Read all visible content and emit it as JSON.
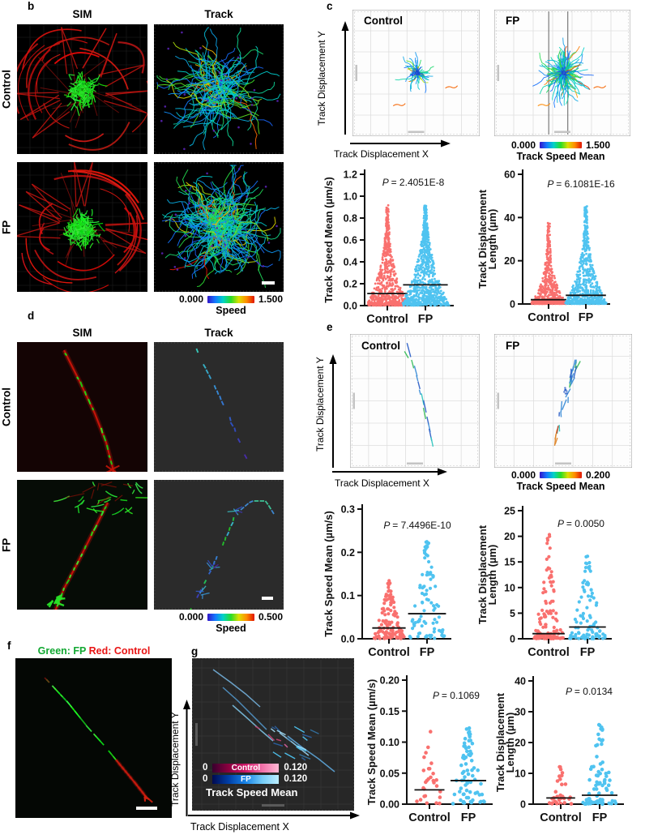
{
  "colors": {
    "control_points": "#F9706E",
    "fp_points": "#4FC3F0",
    "sim_green": "#2bd42b",
    "sim_red": "#d41a10",
    "axis_black": "#111111"
  },
  "panel_b": {
    "label": "b",
    "col_headers": [
      "SIM",
      "Track"
    ],
    "row_labels": [
      "Control",
      "FP"
    ],
    "colorbar": {
      "min": "0.000",
      "max": "1.500",
      "label": "Speed"
    }
  },
  "panel_c": {
    "label": "c",
    "plot_titles": [
      "Control",
      "FP"
    ],
    "y_axis": "Track Displacement Y",
    "x_axis": "Track Displacement X",
    "colorbar": {
      "min": "0.000",
      "max": "1.500",
      "label": "Track Speed Mean"
    }
  },
  "panel_d": {
    "label": "d",
    "col_headers": [
      "SIM",
      "Track"
    ],
    "row_labels": [
      "Control",
      "FP"
    ],
    "colorbar": {
      "min": "0.000",
      "max": "0.500",
      "label": "Speed"
    }
  },
  "panel_e": {
    "label": "e",
    "plot_titles": [
      "Control",
      "FP"
    ],
    "y_axis": "Track Displacement Y",
    "x_axis": "Track Displacement X",
    "colorbar": {
      "min": "0.000",
      "max": "0.200",
      "label": "Track Speed Mean"
    }
  },
  "panel_f": {
    "label": "f",
    "title_green": "Green: FP",
    "title_red": "Red: Control"
  },
  "panel_g": {
    "label": "g",
    "y_axis": "Track Displacement Y",
    "x_axis": "Track Displacement X",
    "colorbar_title": "Track Speed Mean",
    "colorbars": [
      {
        "min": "0",
        "label": "Control",
        "max": "0.120"
      },
      {
        "min": "0",
        "label": "FP",
        "max": "0.120"
      }
    ]
  },
  "chart_data": [
    {
      "id": "c1",
      "panel": "c",
      "type": "scatter",
      "ylabel_lines": [
        "Track Speed Mean (µm/s)"
      ],
      "p_symbol": "P",
      "p_value": "= 2.4051E-8",
      "categories": [
        "Control",
        "FP"
      ],
      "ylim": [
        0,
        1.2
      ],
      "yticks": [
        0,
        0.2,
        0.4,
        0.6,
        0.8,
        1.0,
        1.2
      ],
      "ytick_labels": [
        "0.0",
        "0.2",
        "0.4",
        "0.6",
        "0.8",
        "1.0",
        "1.2"
      ],
      "series": [
        {
          "name": "Control",
          "color": "#F9706E",
          "n": 750,
          "vmax": 0.91,
          "median": 0.11,
          "k": 3.0
        },
        {
          "name": "FP",
          "color": "#4FC3F0",
          "n": 900,
          "vmax": 0.91,
          "median": 0.19,
          "k": 2.26
        }
      ]
    },
    {
      "id": "c2",
      "panel": "c",
      "type": "scatter",
      "ylabel_lines": [
        "Track Displacement",
        "Length (µm)"
      ],
      "p_symbol": "P",
      "p_value": "= 6.1081E-16",
      "categories": [
        "Control",
        "FP"
      ],
      "ylim": [
        0,
        60
      ],
      "yticks": [
        0,
        20,
        40,
        60
      ],
      "ytick_labels": [
        "0",
        "20",
        "40",
        "60"
      ],
      "series": [
        {
          "name": "Control",
          "color": "#F9706E",
          "n": 700,
          "vmax": 37.5,
          "median": 2.0,
          "k": 4.23
        },
        {
          "name": "FP",
          "color": "#4FC3F0",
          "n": 850,
          "vmax": 45.0,
          "median": 4.0,
          "k": 3.49
        }
      ]
    },
    {
      "id": "e1",
      "panel": "e",
      "type": "scatter",
      "ylabel_lines": [
        "Track Speed Mean (µm/s)"
      ],
      "p_symbol": "P",
      "p_value": "= 7.4496E-10",
      "categories": [
        "Control",
        "FP"
      ],
      "ylim": [
        0,
        0.3
      ],
      "yticks": [
        0,
        0.1,
        0.2,
        0.3
      ],
      "ytick_labels": [
        "0.0",
        "0.1",
        "0.2",
        "0.3"
      ],
      "series": [
        {
          "name": "Control",
          "color": "#F9706E",
          "n": 120,
          "vmax": 0.135,
          "median": 0.025,
          "k": 2.43
        },
        {
          "name": "FP",
          "color": "#4FC3F0",
          "n": 95,
          "vmax": 0.23,
          "median": 0.058,
          "k": 1.99
        }
      ]
    },
    {
      "id": "e2",
      "panel": "e",
      "type": "scatter",
      "ylabel_lines": [
        "Track Displacement",
        "Length (µm)"
      ],
      "p_symbol": "P",
      "p_value": "= 0.0050",
      "categories": [
        "Control",
        "FP"
      ],
      "ylim": [
        0,
        25
      ],
      "yticks": [
        0,
        5,
        10,
        15,
        20,
        25
      ],
      "ytick_labels": [
        "0",
        "5",
        "10",
        "15",
        "20",
        "25"
      ],
      "series": [
        {
          "name": "Control",
          "color": "#F9706E",
          "n": 130,
          "vmax": 21.0,
          "median": 1.0,
          "k": 4.39
        },
        {
          "name": "FP",
          "color": "#4FC3F0",
          "n": 100,
          "vmax": 16.0,
          "median": 2.3,
          "k": 2.8
        }
      ]
    },
    {
      "id": "g1",
      "panel": "g",
      "type": "scatter",
      "ylabel_lines": [
        "Track Speed Mean (µm/s)"
      ],
      "p_symbol": "P",
      "p_value": "= 0.1069",
      "categories": [
        "Control",
        "FP"
      ],
      "ylim": [
        0,
        0.2
      ],
      "yticks": [
        0,
        0.05,
        0.1,
        0.15,
        0.2
      ],
      "ytick_labels": [
        "0.00",
        "0.05",
        "0.10",
        "0.15",
        "0.20"
      ],
      "series": [
        {
          "name": "Control",
          "color": "#F9706E",
          "n": 28,
          "vmax": 0.12,
          "median": 0.023,
          "k": 2.38
        },
        {
          "name": "FP",
          "color": "#4FC3F0",
          "n": 72,
          "vmax": 0.125,
          "median": 0.038,
          "k": 1.72
        }
      ]
    },
    {
      "id": "g2",
      "panel": "g",
      "type": "scatter",
      "ylabel_lines": [
        "Track Displacement",
        "Length (µm)"
      ],
      "p_symbol": "P",
      "p_value": "= 0.0134",
      "categories": [
        "Control",
        "FP"
      ],
      "ylim": [
        0,
        40
      ],
      "yticks": [
        0,
        10,
        20,
        30,
        40
      ],
      "ytick_labels": [
        "0",
        "10",
        "20",
        "30",
        "40"
      ],
      "series": [
        {
          "name": "Control",
          "color": "#F9706E",
          "n": 32,
          "vmax": 12.5,
          "median": 2.0,
          "k": 2.64
        },
        {
          "name": "FP",
          "color": "#4FC3F0",
          "n": 88,
          "vmax": 31.0,
          "median": 2.9,
          "k": 3.42
        }
      ]
    }
  ],
  "micro": [
    {
      "id": "b-sim-control",
      "kind": "sim-cell",
      "seed": 11,
      "dense": 150
    },
    {
      "id": "b-track-control",
      "kind": "track-net",
      "seed": 21,
      "n": 120,
      "spread": 36,
      "scalebar": false
    },
    {
      "id": "b-sim-fp",
      "kind": "sim-cell",
      "seed": 31,
      "dense": 235
    },
    {
      "id": "b-track-fp",
      "kind": "track-net",
      "seed": 41,
      "n": 215,
      "spread": 44,
      "scalebar": true
    },
    {
      "id": "d-sim-control",
      "kind": "sim-line",
      "seed": 51,
      "variant": "control"
    },
    {
      "id": "d-track-control",
      "kind": "track-line",
      "seed": 61,
      "variant": "control"
    },
    {
      "id": "d-sim-fp",
      "kind": "sim-line",
      "seed": 71,
      "variant": "fp"
    },
    {
      "id": "d-track-fp",
      "kind": "track-line",
      "seed": 81,
      "variant": "fp"
    },
    {
      "id": "f-image",
      "kind": "filament",
      "seed": 91
    },
    {
      "id": "g-plot",
      "kind": "track-dark",
      "seed": 101
    },
    {
      "id": "c-plot-control",
      "kind": "white-star",
      "seed": 111,
      "n": 58,
      "maxlen": 26,
      "darklines": false
    },
    {
      "id": "c-plot-fp",
      "kind": "white-star",
      "seed": 121,
      "n": 150,
      "maxlen": 40,
      "darklines": true
    },
    {
      "id": "e-plot-control",
      "kind": "white-diag",
      "seed": 131,
      "variant": "control"
    },
    {
      "id": "e-plot-fp",
      "kind": "white-diag",
      "seed": 141,
      "variant": "fp"
    }
  ]
}
